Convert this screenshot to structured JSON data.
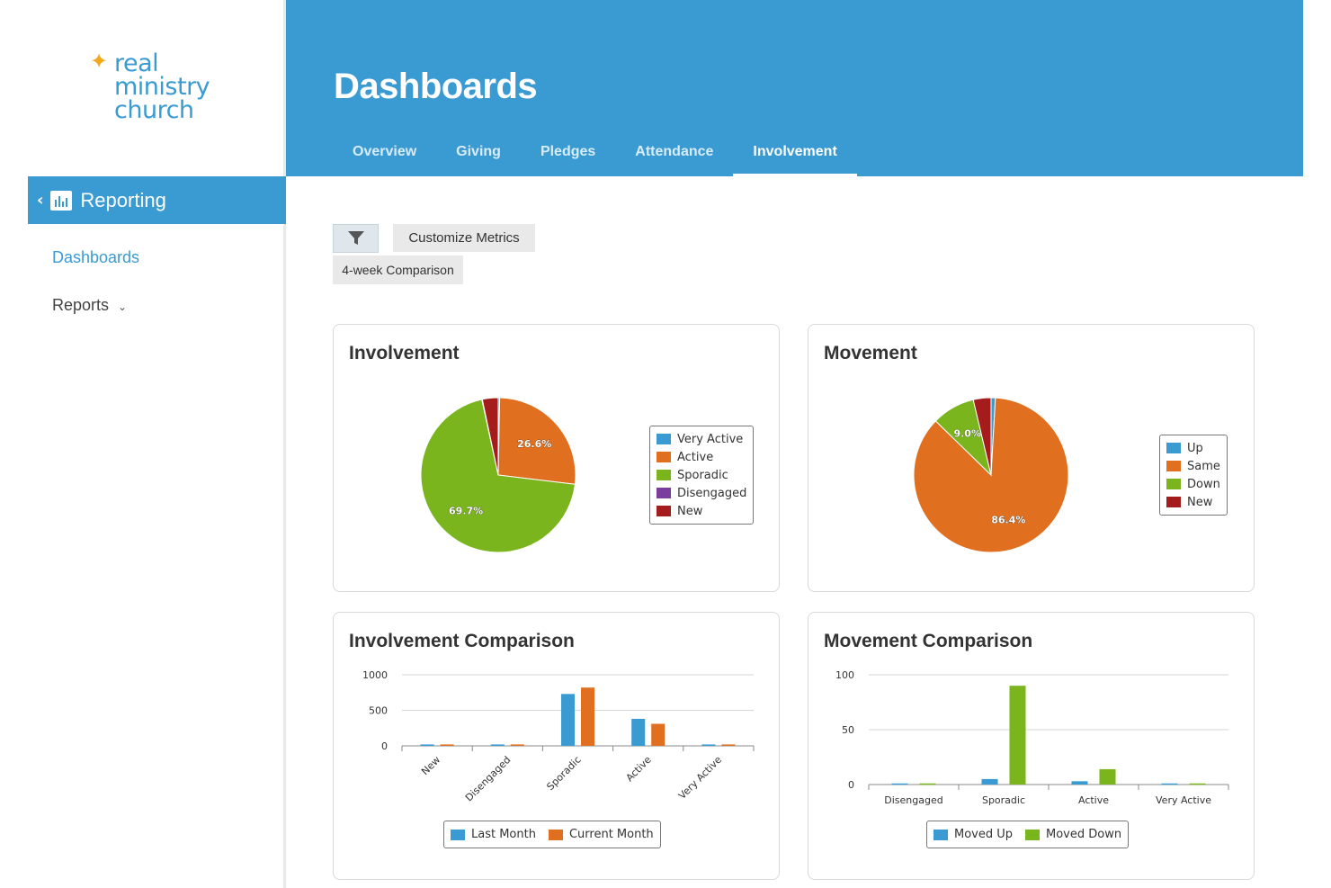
{
  "logo": {
    "line1": "real",
    "line2": "ministry",
    "line3": "church"
  },
  "sidebar": {
    "section_label": "Reporting",
    "links": {
      "dashboards": "Dashboards",
      "reports": "Reports"
    }
  },
  "header": {
    "title": "Dashboards",
    "tabs": [
      "Overview",
      "Giving",
      "Pledges",
      "Attendance",
      "Involvement"
    ],
    "active_tab": "Involvement"
  },
  "toolbar": {
    "customize_label": "Customize Metrics",
    "comparison_tag": "4-week Comparison"
  },
  "colors": {
    "brand": "#3a9bd2",
    "very_active": "#3a9bd2",
    "active": "#e07020",
    "sporadic": "#7ab51d",
    "disengaged": "#7a3f9d",
    "new": "#a51c1c"
  },
  "cards": {
    "involvement": {
      "title": "Involvement"
    },
    "movement": {
      "title": "Movement"
    },
    "involvement_comparison": {
      "title": "Involvement Comparison"
    },
    "movement_comparison": {
      "title": "Movement Comparison"
    }
  },
  "chart_data": [
    {
      "type": "pie",
      "title": "Involvement",
      "labels": [
        "Very Active",
        "Active",
        "Sporadic",
        "Disengaged",
        "New"
      ],
      "values": [
        0.3,
        26.6,
        69.7,
        0.1,
        3.3
      ],
      "data_labels": [
        "",
        "26.6%",
        "69.7%",
        "",
        ""
      ],
      "legend": "right"
    },
    {
      "type": "pie",
      "title": "Movement",
      "labels": [
        "Up",
        "Same",
        "Down",
        "New"
      ],
      "values": [
        0.9,
        86.4,
        9.0,
        3.7
      ],
      "data_labels": [
        "",
        "86.4%",
        "9.0%",
        ""
      ],
      "legend": "right"
    },
    {
      "type": "bar",
      "title": "Involvement Comparison",
      "categories": [
        "New",
        "Disengaged",
        "Sporadic",
        "Active",
        "Very Active"
      ],
      "series": [
        {
          "name": "Last Month",
          "values": [
            20,
            20,
            730,
            380,
            20
          ]
        },
        {
          "name": "Current Month",
          "values": [
            20,
            20,
            820,
            310,
            20
          ]
        }
      ],
      "ylim": [
        0,
        1000
      ],
      "yticks": [
        "0",
        "500",
        "1000"
      ],
      "legend": "bottom"
    },
    {
      "type": "bar",
      "title": "Movement Comparison",
      "categories": [
        "Disengaged",
        "Sporadic",
        "Active",
        "Very Active"
      ],
      "series": [
        {
          "name": "Moved Up",
          "values": [
            1,
            5,
            3,
            1
          ]
        },
        {
          "name": "Moved Down",
          "values": [
            1,
            90,
            14,
            1
          ]
        }
      ],
      "ylim": [
        0,
        100
      ],
      "yticks": [
        "0",
        "50",
        "100"
      ],
      "legend": "bottom"
    }
  ]
}
